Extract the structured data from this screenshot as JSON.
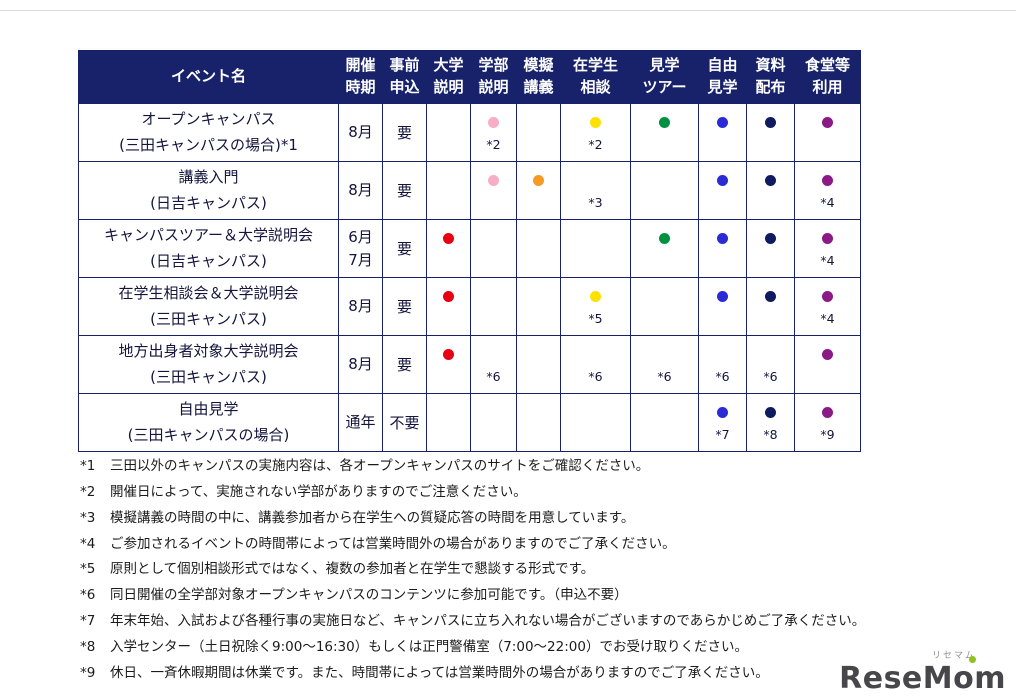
{
  "logo": {
    "name": "ReseMom",
    "kana": "リセマム",
    "text_color": "#47474b",
    "accent_color": "#8dc21f"
  },
  "table": {
    "header_bg": "#17226b",
    "border_color": "#17226b",
    "columns": [
      {
        "id": "event",
        "lines": [
          "イベント名"
        ]
      },
      {
        "id": "period",
        "lines": [
          "開催",
          "時期"
        ]
      },
      {
        "id": "apply",
        "lines": [
          "事前",
          "申込"
        ]
      },
      {
        "id": "univ",
        "lines": [
          "大学",
          "説明"
        ]
      },
      {
        "id": "faculty",
        "lines": [
          "学部",
          "説明"
        ]
      },
      {
        "id": "mock",
        "lines": [
          "模擬",
          "講義"
        ]
      },
      {
        "id": "consult",
        "lines": [
          "在学生",
          "相談"
        ]
      },
      {
        "id": "tour",
        "lines": [
          "見学",
          "ツアー"
        ]
      },
      {
        "id": "free",
        "lines": [
          "自由",
          "見学"
        ]
      },
      {
        "id": "material",
        "lines": [
          "資料",
          "配布"
        ]
      },
      {
        "id": "cafeteria",
        "lines": [
          "食堂等",
          "利用"
        ]
      }
    ],
    "dot_colors": {
      "pink": "#f5aec5",
      "orange": "#f59a23",
      "red": "#e60012",
      "yellow": "#ffe100",
      "green": "#009140",
      "blue": "#2b2bd5",
      "navy": "#101a5e",
      "purple": "#8a1a86"
    },
    "rows": [
      {
        "event_lines": [
          "オープンキャンパス",
          "(三田キャンパスの場合)*1"
        ],
        "period_lines": [
          "8月"
        ],
        "apply": "要",
        "cells": [
          {},
          {
            "dot": "pink",
            "note": "*2"
          },
          {},
          {
            "dot": "yellow",
            "note": "*2"
          },
          {
            "dot": "green"
          },
          {
            "dot": "blue"
          },
          {
            "dot": "navy"
          },
          {
            "dot": "purple"
          }
        ]
      },
      {
        "event_lines": [
          "講義入門",
          "(日吉キャンパス)"
        ],
        "period_lines": [
          "8月"
        ],
        "apply": "要",
        "cells": [
          {},
          {
            "dot": "pink"
          },
          {
            "dot": "orange"
          },
          {
            "note": "*3"
          },
          {},
          {
            "dot": "blue"
          },
          {
            "dot": "navy"
          },
          {
            "dot": "purple",
            "note": "*4"
          }
        ]
      },
      {
        "event_lines": [
          "キャンパスツアー＆大学説明会",
          "(日吉キャンパス)"
        ],
        "period_lines": [
          "6月",
          "7月"
        ],
        "apply": "要",
        "cells": [
          {
            "dot": "red"
          },
          {},
          {},
          {},
          {
            "dot": "green"
          },
          {
            "dot": "blue"
          },
          {
            "dot": "navy"
          },
          {
            "dot": "purple",
            "note": "*4"
          }
        ]
      },
      {
        "event_lines": [
          "在学生相談会＆大学説明会",
          "(三田キャンパス)"
        ],
        "period_lines": [
          "8月"
        ],
        "apply": "要",
        "cells": [
          {
            "dot": "red"
          },
          {},
          {},
          {
            "dot": "yellow",
            "note": "*5"
          },
          {},
          {
            "dot": "blue"
          },
          {
            "dot": "navy"
          },
          {
            "dot": "purple",
            "note": "*4"
          }
        ]
      },
      {
        "event_lines": [
          "地方出身者対象大学説明会",
          "(三田キャンパス)"
        ],
        "period_lines": [
          "8月"
        ],
        "apply": "要",
        "cells": [
          {
            "dot": "red"
          },
          {
            "note": "*6"
          },
          {},
          {
            "note": "*6"
          },
          {
            "note": "*6"
          },
          {
            "note": "*6"
          },
          {
            "note": "*6"
          },
          {
            "dot": "purple"
          }
        ]
      },
      {
        "event_lines": [
          "自由見学",
          "(三田キャンパスの場合)"
        ],
        "period_lines": [
          "通年"
        ],
        "apply": "不要",
        "cells": [
          {},
          {},
          {},
          {},
          {},
          {
            "dot": "blue",
            "note": "*7"
          },
          {
            "dot": "navy",
            "note": "*8"
          },
          {
            "dot": "purple",
            "note": "*9"
          }
        ]
      }
    ]
  },
  "footnotes": [
    {
      "marker": "*1",
      "text": "三田以外のキャンパスの実施内容は、各オープンキャンパスのサイトをご確認ください。"
    },
    {
      "marker": "*2",
      "text": "開催日によって、実施されない学部がありますのでご注意ください。"
    },
    {
      "marker": "*3",
      "text": "模擬講義の時間の中に、講義参加者から在学生への質疑応答の時間を用意しています。"
    },
    {
      "marker": "*4",
      "text": "ご参加されるイベントの時間帯によっては営業時間外の場合がありますのでご了承ください。"
    },
    {
      "marker": "*5",
      "text": "原則として個別相談形式ではなく、複数の参加者と在学生で懇談する形式です。"
    },
    {
      "marker": "*6",
      "text": "同日開催の全学部対象オープンキャンパスのコンテンツに参加可能です。（申込不要）"
    },
    {
      "marker": "*7",
      "text": "年末年始、入試および各種行事の実施日など、キャンパスに立ち入れない場合がございますのであらかじめご了承ください。"
    },
    {
      "marker": "*8",
      "text": "入学センター（土日祝除く9:00～16:30）もしくは正門警備室（7:00～22:00）でお受け取りください。"
    },
    {
      "marker": "*9",
      "text": "休日、一斉休暇期間は休業です。また、時間帯によっては営業時間外の場合がありますのでご了承ください。"
    }
  ]
}
